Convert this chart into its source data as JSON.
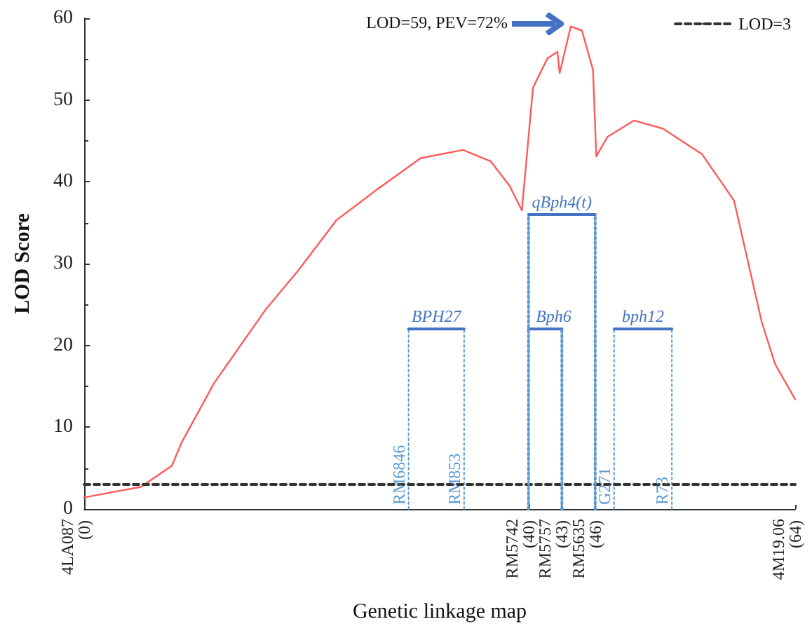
{
  "chart_data": {
    "type": "line",
    "xlabel": "Genetic linkage map",
    "ylabel": "LOD Score",
    "xlim": [
      0,
      64
    ],
    "xticks": [
      {
        "value": 0,
        "label": "(0)"
      },
      {
        "value": 40,
        "label": "(40)"
      },
      {
        "value": 43,
        "label": "(43)"
      },
      {
        "value": 46,
        "label": "(46)"
      },
      {
        "value": 64,
        "label": "(64)"
      }
    ],
    "ylim": [
      0,
      60
    ],
    "yticks": [
      0,
      10,
      20,
      30,
      40,
      50,
      60
    ],
    "grid": false,
    "legend": "top right",
    "marker": "none",
    "annotations": [
      "LOD=59, PEV=72%",
      "4LA087",
      "RM5742",
      "RM5757",
      "RM5635",
      "4M19.06"
    ],
    "series": [
      {
        "color": "#ff5a5a",
        "x": [
          0,
          1.9,
          5.1,
          7.9,
          8.8,
          11.7,
          16.4,
          19.3,
          22.7,
          26.1,
          30.3,
          34.1,
          36.6,
          38.3,
          39.4,
          40.4,
          41.7,
          42.6,
          42.8,
          43.8,
          44.8,
          45.8,
          46.1,
          47.1,
          49.5,
          52.1,
          55.6,
          58.5,
          61,
          62.2,
          64
        ],
        "values": [
          1.4,
          1.9,
          2.7,
          5.3,
          8.2,
          15.4,
          24.5,
          29.2,
          35.3,
          38.8,
          42.9,
          43.9,
          42.5,
          39.5,
          36.5,
          51.5,
          55.1,
          55.9,
          53.3,
          59,
          58.5,
          53.7,
          43.1,
          45.5,
          47.5,
          46.5,
          43.4,
          37.7,
          22.8,
          17.7,
          13.4
        ]
      },
      {
        "name": "LOD=3",
        "color": "#333333",
        "line_style": "dashed",
        "x": [
          0,
          64
        ],
        "values": [
          3,
          3
        ]
      },
      {
        "name": "BPH27",
        "color": "#4472c4",
        "x": [
          29.2,
          34.2
        ],
        "values": [
          22,
          22
        ]
      },
      {
        "name": "Bph6",
        "color": "#4472c4",
        "x": [
          40,
          43
        ],
        "values": [
          22,
          22
        ]
      },
      {
        "name": "bph12",
        "color": "#4472c4",
        "x": [
          47.7,
          52.9
        ],
        "values": [
          22,
          22
        ]
      },
      {
        "name": "qBph4(t)",
        "color": "#4472c4",
        "x": [
          40,
          46
        ],
        "values": [
          36,
          36
        ]
      },
      {
        "name": "RM6846",
        "color": "#5b9bd5",
        "line_style": "dotted",
        "x": [
          29.2,
          29.2
        ],
        "values": [
          0,
          22
        ]
      },
      {
        "name": "RM853",
        "color": "#5b9bd5",
        "line_style": "dotted",
        "x": [
          34.2,
          34.2
        ],
        "values": [
          0,
          22
        ]
      },
      {
        "name": "G271",
        "color": "#5b9bd5",
        "line_style": "dotted",
        "x": [
          47.7,
          47.7
        ],
        "values": [
          0,
          22
        ]
      },
      {
        "name": "R73",
        "color": "#5b9bd5",
        "line_style": "dotted",
        "x": [
          52.9,
          52.9
        ],
        "values": [
          0,
          22
        ]
      },
      {
        "color": "#5b9bd5",
        "line_style": "dotted",
        "x": [
          40,
          40
        ],
        "values": [
          0,
          36
        ]
      },
      {
        "color": "#5b9bd5",
        "line_style": "dotted",
        "x": [
          43,
          43
        ],
        "values": [
          0,
          22
        ]
      },
      {
        "color": "#5b9bd5",
        "line_style": "dotted",
        "x": [
          46,
          46
        ],
        "values": [
          0,
          36
        ]
      }
    ]
  }
}
